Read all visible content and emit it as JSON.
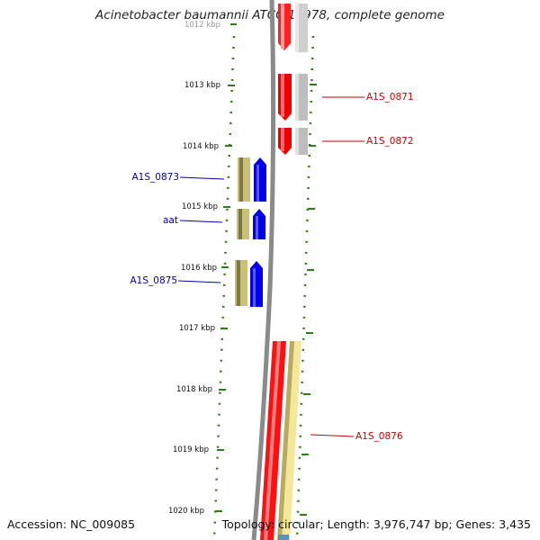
{
  "title": "Acinetobacter baumannii ATCC 17978, complete genome",
  "accession": "Accession: NC_009085",
  "summary": "Topology: circular; Length: 3,976,747 bp; Genes: 3,435",
  "colors": {
    "backbone": "#888888",
    "ticks": "#2e7d18",
    "forward_cds": "#ff0000",
    "forward_gene": "#bbbbbb",
    "reverse_cds": "#0000ff",
    "reverse_gene": "#c8bf78",
    "forward_label": "#cc0000",
    "reverse_label": "#0000aa",
    "long_gene": "#f4e79a"
  },
  "ticks": [
    "1012 kbp",
    "1013 kbp",
    "1014 kbp",
    "1015 kbp",
    "1016 kbp",
    "1017 kbp",
    "1018 kbp",
    "1019 kbp",
    "1020 kbp"
  ],
  "labels_forward": [
    "A1S_0871",
    "A1S_0872",
    "A1S_0876"
  ],
  "labels_reverse": [
    "A1S_0873",
    "aat",
    "A1S_0875"
  ]
}
